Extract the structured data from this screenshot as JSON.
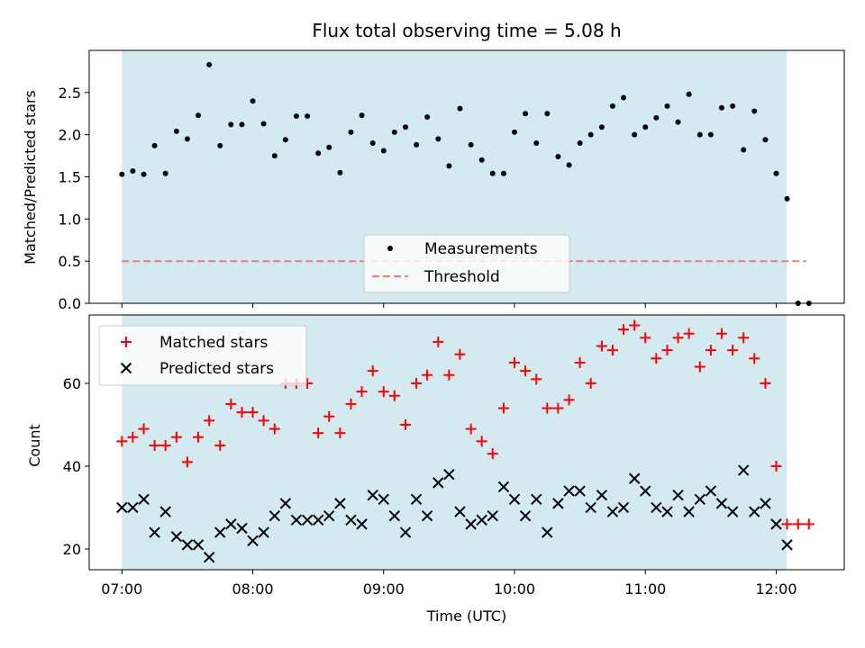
{
  "chart_data": [
    {
      "type": "scatter",
      "title": "Flux total observing time = 5.08 h",
      "xlabel": "",
      "ylabel": "Matched/Predicted stars",
      "x_unit": "hours UTC",
      "xlim": [
        6.75,
        12.52
      ],
      "ylim": [
        0,
        3.0
      ],
      "yticks": [
        0.0,
        0.5,
        1.0,
        1.5,
        2.0,
        2.5
      ],
      "ytick_labels": [
        "0.0",
        "0.5",
        "1.0",
        "1.5",
        "2.0",
        "2.5"
      ],
      "shaded_x_range": [
        7.0,
        12.08
      ],
      "shade_color": "#d3eaf0",
      "legend_placement": "lower-center",
      "series": [
        {
          "name": "Measurements",
          "marker": "dot",
          "color": "#000000",
          "x": [
            7.0,
            7.083,
            7.167,
            7.25,
            7.333,
            7.417,
            7.5,
            7.583,
            7.667,
            7.75,
            7.833,
            7.917,
            8.0,
            8.083,
            8.167,
            8.25,
            8.333,
            8.417,
            8.5,
            8.583,
            8.667,
            8.75,
            8.833,
            8.917,
            9.0,
            9.083,
            9.167,
            9.25,
            9.333,
            9.417,
            9.5,
            9.583,
            9.667,
            9.75,
            9.833,
            9.917,
            10.0,
            10.083,
            10.167,
            10.25,
            10.333,
            10.417,
            10.5,
            10.583,
            10.667,
            10.75,
            10.833,
            10.917,
            11.0,
            11.083,
            11.167,
            11.25,
            11.333,
            11.417,
            11.5,
            11.583,
            11.667,
            11.75,
            11.833,
            11.917,
            12.0,
            12.083,
            12.167,
            12.25
          ],
          "y": [
            1.53,
            1.57,
            1.53,
            1.87,
            1.54,
            2.04,
            1.95,
            2.23,
            2.83,
            1.87,
            2.12,
            2.12,
            2.4,
            2.13,
            1.75,
            1.94,
            2.22,
            2.22,
            1.78,
            1.85,
            1.55,
            2.03,
            2.23,
            1.9,
            1.81,
            2.03,
            2.09,
            1.88,
            2.21,
            1.95,
            1.63,
            2.31,
            1.88,
            1.7,
            1.54,
            1.54,
            2.03,
            2.25,
            1.9,
            2.25,
            1.74,
            1.64,
            1.9,
            2.0,
            2.09,
            2.34,
            2.44,
            2.0,
            2.09,
            2.2,
            2.34,
            2.15,
            2.48,
            2.0,
            2.0,
            2.32,
            2.34,
            1.82,
            2.28,
            1.94,
            1.54,
            1.24,
            0.0,
            0.0
          ]
        },
        {
          "name": "Threshold",
          "marker": "dashed-line",
          "color": "#f08080",
          "x": [
            7.0,
            12.23
          ],
          "y": [
            0.5,
            0.5
          ]
        }
      ]
    },
    {
      "type": "scatter",
      "title": "",
      "xlabel": "Time (UTC)",
      "ylabel": "Count",
      "x_unit": "hours UTC",
      "xlim": [
        6.75,
        12.52
      ],
      "ylim": [
        15,
        76.5
      ],
      "xticks": [
        7,
        8,
        9,
        10,
        11,
        12
      ],
      "xtick_labels": [
        "07:00",
        "08:00",
        "09:00",
        "10:00",
        "11:00",
        "12:00"
      ],
      "yticks": [
        20,
        40,
        60
      ],
      "ytick_labels": [
        "20",
        "40",
        "60"
      ],
      "shaded_x_range": [
        7.0,
        12.08
      ],
      "shade_color": "#d3eaf0",
      "legend_placement": "upper-left",
      "series": [
        {
          "name": "Matched stars",
          "marker": "plus",
          "color": "#ff0000",
          "x": [
            7.0,
            7.083,
            7.167,
            7.25,
            7.333,
            7.417,
            7.5,
            7.583,
            7.667,
            7.75,
            7.833,
            7.917,
            8.0,
            8.083,
            8.167,
            8.25,
            8.333,
            8.417,
            8.5,
            8.583,
            8.667,
            8.75,
            8.833,
            8.917,
            9.0,
            9.083,
            9.167,
            9.25,
            9.333,
            9.417,
            9.5,
            9.583,
            9.667,
            9.75,
            9.833,
            9.917,
            10.0,
            10.083,
            10.167,
            10.25,
            10.333,
            10.417,
            10.5,
            10.583,
            10.667,
            10.75,
            10.833,
            10.917,
            11.0,
            11.083,
            11.167,
            11.25,
            11.333,
            11.417,
            11.5,
            11.583,
            11.667,
            11.75,
            11.833,
            11.917,
            12.0,
            12.083,
            12.167,
            12.25
          ],
          "y": [
            46,
            47,
            49,
            45,
            45,
            47,
            41,
            47,
            51,
            45,
            55,
            53,
            53,
            51,
            49,
            60,
            60,
            60,
            48,
            52,
            48,
            55,
            58,
            63,
            58,
            57,
            50,
            60,
            62,
            70,
            62,
            67,
            49,
            46,
            43,
            54,
            65,
            63,
            61,
            54,
            54,
            56,
            65,
            60,
            69,
            68,
            73,
            74,
            71,
            66,
            68,
            71,
            72,
            64,
            68,
            72,
            68,
            71,
            66,
            60,
            40,
            26,
            26,
            26
          ]
        },
        {
          "name": "Predicted stars",
          "marker": "x",
          "color": "#000000",
          "x": [
            7.0,
            7.083,
            7.167,
            7.25,
            7.333,
            7.417,
            7.5,
            7.583,
            7.667,
            7.75,
            7.833,
            7.917,
            8.0,
            8.083,
            8.167,
            8.25,
            8.333,
            8.417,
            8.5,
            8.583,
            8.667,
            8.75,
            8.833,
            8.917,
            9.0,
            9.083,
            9.167,
            9.25,
            9.333,
            9.417,
            9.5,
            9.583,
            9.667,
            9.75,
            9.833,
            9.917,
            10.0,
            10.083,
            10.167,
            10.25,
            10.333,
            10.417,
            10.5,
            10.583,
            10.667,
            10.75,
            10.833,
            10.917,
            11.0,
            11.083,
            11.167,
            11.25,
            11.333,
            11.417,
            11.5,
            11.583,
            11.667,
            11.75,
            11.833,
            11.917,
            12.0,
            12.083
          ],
          "y": [
            30,
            30,
            32,
            24,
            29,
            23,
            21,
            21,
            18,
            24,
            26,
            25,
            22,
            24,
            28,
            31,
            27,
            27,
            27,
            28,
            31,
            27,
            26,
            33,
            32,
            28,
            24,
            32,
            28,
            36,
            38,
            29,
            26,
            27,
            28,
            35,
            32,
            28,
            32,
            24,
            31,
            34,
            34,
            30,
            33,
            29,
            30,
            37,
            34,
            30,
            29,
            33,
            29,
            32,
            34,
            31,
            29,
            39,
            29,
            31,
            26,
            21
          ]
        }
      ]
    }
  ]
}
